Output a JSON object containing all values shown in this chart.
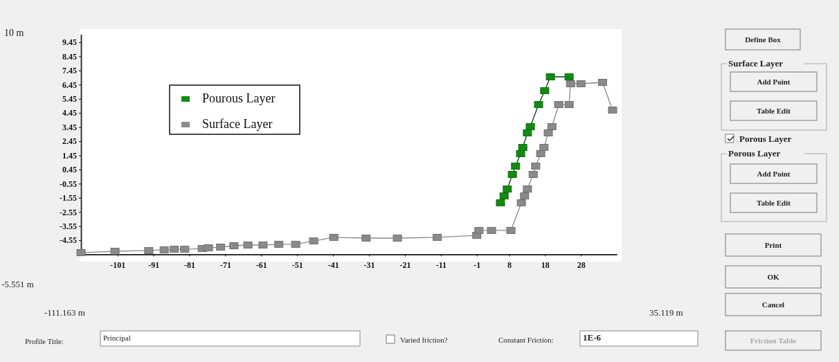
{
  "chart_data": {
    "type": "line",
    "xlim": [
      -111.163,
      38
    ],
    "xticks": [
      -101,
      -91,
      -81,
      -71,
      -61,
      -51,
      -41,
      -31,
      -21,
      -11,
      -1,
      8,
      18,
      28
    ],
    "ylim": [
      -5.551,
      10
    ],
    "yticks": [
      {
        "value": -4.551,
        "label": "-4.55"
      },
      {
        "value": -3.551,
        "label": "-3.55"
      },
      {
        "value": -2.551,
        "label": "-2.55"
      },
      {
        "value": -1.551,
        "label": "-1.55"
      },
      {
        "value": -0.551,
        "label": "-0.55"
      },
      {
        "value": 0.449,
        "label": "0.45"
      },
      {
        "value": 1.449,
        "label": "1.45"
      },
      {
        "value": 2.449,
        "label": "2.45"
      },
      {
        "value": 3.449,
        "label": "3.45"
      },
      {
        "value": 4.449,
        "label": "4.45"
      },
      {
        "value": 5.449,
        "label": "5.45"
      },
      {
        "value": 6.449,
        "label": "6.45"
      },
      {
        "value": 7.449,
        "label": "7.45"
      },
      {
        "value": 8.449,
        "label": "8.45"
      },
      {
        "value": 9.449,
        "label": "9.45"
      }
    ],
    "marker": "square",
    "legend": "top left",
    "series": [
      {
        "name": "Pourous Layer",
        "color": "#138a13",
        "x": [
          5.6,
          6.6,
          7.5,
          8.9,
          9.8,
          11.2,
          11.8,
          13.1,
          13.9,
          16.2,
          17.9,
          19.5,
          24.7
        ],
        "values": [
          -1.91,
          -1.42,
          -0.93,
          0.1,
          0.69,
          1.57,
          2.01,
          3.04,
          3.48,
          5.04,
          6.02,
          7.0,
          7.0
        ]
      },
      {
        "name": "Surface Layer",
        "color": "#8a8a8a",
        "x": [
          -111.16,
          -101.7,
          -92.3,
          -88.0,
          -85.2,
          -82.3,
          -77.4,
          -75.7,
          -72.3,
          -68.6,
          -64.7,
          -60.5,
          -56.1,
          -51.4,
          -46.4,
          -40.8,
          -31.8,
          -23.1,
          -12.0,
          -1.0,
          -0.4,
          3.1,
          8.5,
          11.4,
          12.3,
          13.1,
          14.7,
          15.4,
          16.8,
          17.7,
          18.9,
          19.9,
          21.8,
          24.7,
          25.1,
          28.0,
          34.0,
          36.8
        ],
        "values": [
          -5.43,
          -5.33,
          -5.28,
          -5.23,
          -5.19,
          -5.19,
          -5.14,
          -5.09,
          -5.04,
          -4.94,
          -4.89,
          -4.89,
          -4.84,
          -4.84,
          -4.6,
          -4.35,
          -4.4,
          -4.4,
          -4.35,
          -4.21,
          -3.86,
          -3.86,
          -3.86,
          -1.91,
          -1.42,
          -0.93,
          0.1,
          0.69,
          1.57,
          2.01,
          3.04,
          3.48,
          5.04,
          5.04,
          6.51,
          6.51,
          6.61,
          4.65
        ]
      }
    ],
    "annotations": [
      "10 m",
      "-5.551 m",
      "-111.163 m",
      "35.119 m",
      "Define Box",
      "Surface Layer",
      "Add Point",
      "Table Edit",
      "Porous Layer",
      "Porous Layer",
      "Add Point",
      "Table Edit",
      "Print",
      "OK",
      "Cancel",
      "Friction Table",
      "Profile Title:",
      "Principal",
      "Varied friction?",
      "Constant Friction:",
      "1E-6"
    ]
  }
}
